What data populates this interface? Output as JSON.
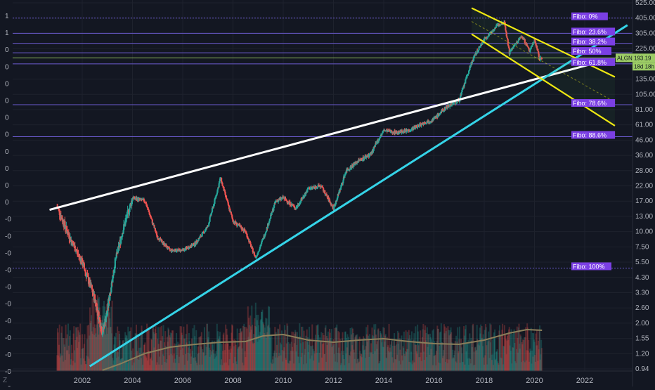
{
  "chart": {
    "symbol": "ALGN",
    "last_price": "193.19",
    "countdown": "18d 18h",
    "corner_glyph": "Z",
    "colors": {
      "background": "#131722",
      "up": "#26a69a",
      "down": "#ef5350",
      "fib_line": "#6a5acd",
      "fib_label_bg": "#7b3fe4",
      "price_line": "#9ccc65",
      "trend_white": "#ffffff",
      "trend_cyan": "#35d4e8",
      "channel_yellow": "#f5eb10",
      "volume_ma": "#8a7e5a"
    }
  },
  "chart_data": {
    "type": "candlestick",
    "scale": "log",
    "x_ticks": [
      "2002",
      "2004",
      "2006",
      "2008",
      "2010",
      "2012",
      "2014",
      "2016",
      "2018",
      "2020",
      "2022"
    ],
    "y_ticks": [
      "525.00",
      "405.00",
      "305.00",
      "225.00",
      "175.00",
      "135.00",
      "105.00",
      "81.00",
      "61.00",
      "46.00",
      "36.00",
      "28.00",
      "22.00",
      "17.00",
      "13.00",
      "10.00",
      "7.50",
      "5.50",
      "4.30",
      "3.30",
      "2.60",
      "2.00",
      "1.55",
      "1.20",
      "0.94"
    ],
    "left_ticks": [
      "1",
      "1",
      "0",
      "0",
      "0",
      "0",
      "0",
      "0",
      "0",
      "0",
      "0",
      "0",
      "-0",
      "-0",
      "-0",
      "-0",
      "-0",
      "-0",
      "-0",
      "-0",
      "-0",
      "-0",
      "-0"
    ],
    "fibonacci": [
      {
        "label": "Fibo:  0%",
        "price": 405
      },
      {
        "label": "Fibo: 23.6%",
        "price": 305
      },
      {
        "label": "Fibo: 38.2%",
        "price": 250
      },
      {
        "label": "Fibo:  50%",
        "price": 210
      },
      {
        "label": "Fibo: 61.8%",
        "price": 175
      },
      {
        "label": "Fibo: 78.6%",
        "price": 88
      },
      {
        "label": "Fibo: 88.6%",
        "price": 49
      },
      {
        "label": "Fibo: 100%",
        "price": 5
      }
    ],
    "monthly_closes": [
      [
        2001.0,
        15.5
      ],
      [
        2001.5,
        9
      ],
      [
        2002.0,
        5.5
      ],
      [
        2002.5,
        3
      ],
      [
        2002.8,
        1.7
      ],
      [
        2003.0,
        2.5
      ],
      [
        2003.3,
        5.5
      ],
      [
        2003.6,
        10
      ],
      [
        2004.0,
        18
      ],
      [
        2004.5,
        17
      ],
      [
        2005.0,
        9
      ],
      [
        2005.5,
        7
      ],
      [
        2006.0,
        7
      ],
      [
        2006.5,
        8
      ],
      [
        2007.0,
        11
      ],
      [
        2007.5,
        25
      ],
      [
        2008.0,
        12
      ],
      [
        2008.5,
        10
      ],
      [
        2008.9,
        6
      ],
      [
        2009.3,
        10
      ],
      [
        2009.7,
        17
      ],
      [
        2010.0,
        18
      ],
      [
        2010.5,
        15
      ],
      [
        2011.0,
        21
      ],
      [
        2011.5,
        22
      ],
      [
        2012.0,
        15
      ],
      [
        2012.5,
        28
      ],
      [
        2013.0,
        33
      ],
      [
        2013.5,
        37
      ],
      [
        2014.0,
        55
      ],
      [
        2014.5,
        53
      ],
      [
        2015.0,
        55
      ],
      [
        2015.5,
        62
      ],
      [
        2016.0,
        68
      ],
      [
        2016.5,
        85
      ],
      [
        2017.0,
        95
      ],
      [
        2017.5,
        180
      ],
      [
        2018.0,
        270
      ],
      [
        2018.5,
        350
      ],
      [
        2018.8,
        380
      ],
      [
        2019.0,
        210
      ],
      [
        2019.5,
        290
      ],
      [
        2019.8,
        215
      ],
      [
        2020.0,
        270
      ],
      [
        2020.2,
        190
      ],
      [
        2020.3,
        193
      ]
    ]
  }
}
